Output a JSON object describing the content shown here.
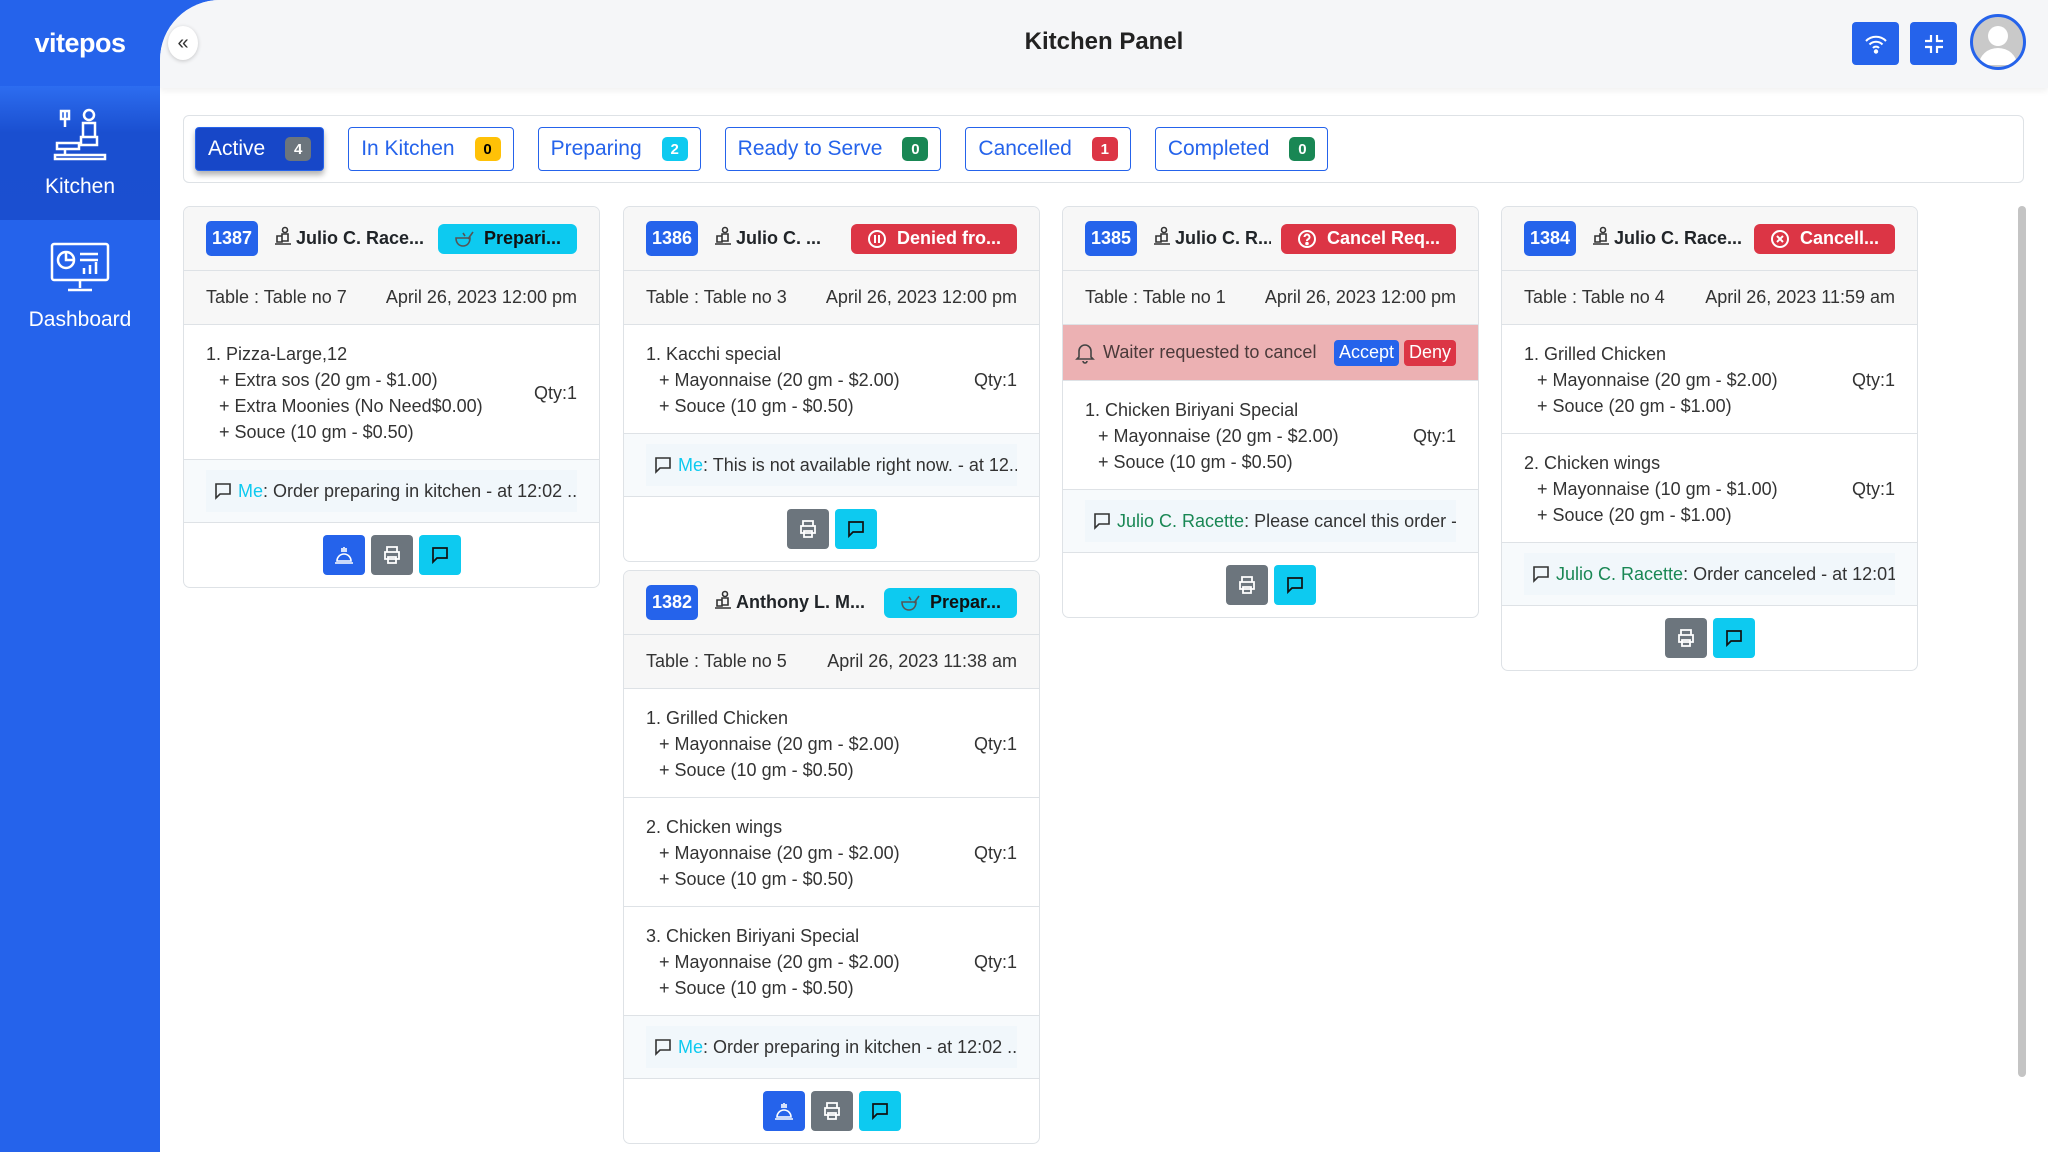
{
  "app": {
    "logo": "vitepos",
    "title": "Kitchen Panel"
  },
  "sidebar": {
    "items": [
      {
        "label": "Kitchen",
        "icon": "chef-icon",
        "active": true
      },
      {
        "label": "Dashboard",
        "icon": "dashboard-monitor-icon",
        "active": false
      }
    ]
  },
  "header": {
    "collapse_icon": "double-chevron-left-icon",
    "buttons": [
      {
        "icon": "wifi-icon"
      },
      {
        "icon": "fullscreen-exit-icon"
      }
    ],
    "avatar": "user-avatar-icon"
  },
  "tabs": [
    {
      "label": "Active",
      "count": "4",
      "badge_color": "#6c757d",
      "badge_text": "#ffffff",
      "active": true
    },
    {
      "label": "In Kitchen",
      "count": "0",
      "badge_color": "#ffc107",
      "badge_text": "#000000"
    },
    {
      "label": "Preparing",
      "count": "2",
      "badge_color": "#0dcaf0",
      "badge_text": "#ffffff"
    },
    {
      "label": "Ready to Serve",
      "count": "0",
      "badge_color": "#198754",
      "badge_text": "#ffffff"
    },
    {
      "label": "Cancelled",
      "count": "1",
      "badge_color": "#dc3545",
      "badge_text": "#ffffff"
    },
    {
      "label": "Completed",
      "count": "0",
      "badge_color": "#198754",
      "badge_text": "#ffffff"
    }
  ],
  "colors": {
    "primary": "#2563eb",
    "info": "#0dcaf0",
    "danger": "#dc3545",
    "secondary": "#6c757d",
    "waiter_name": "#198754",
    "me_name": "#0dcaf0"
  },
  "orders": [
    {
      "id": "1387",
      "customer": "Julio C. Race...",
      "status": "Prepari...",
      "status_type": "preparing",
      "table": "Table : Table no 7",
      "date": "April 26, 2023 12:00 pm",
      "items": [
        {
          "name": "1. Pizza-Large,12",
          "mods": [
            "+ Extra sos (20 gm - $1.00)",
            "+ Extra Moonies (No Need$0.00)",
            "+ Souce (10 gm - $0.50)"
          ],
          "qty": "Qty:1"
        }
      ],
      "comment": {
        "author": "Me",
        "text": " : Order preparing in kitchen - at 12:02 ...",
        "author_type": "me"
      },
      "buttons": [
        "serve",
        "print",
        "chat"
      ]
    },
    {
      "id": "1386",
      "customer": "Julio C. ...",
      "status": "Denied fro...",
      "status_type": "denied",
      "table": "Table : Table no 3",
      "date": "April 26, 2023 12:00 pm",
      "items": [
        {
          "name": "1. Kacchi special",
          "mods": [
            "+ Mayonnaise (20 gm - $2.00)",
            "+ Souce (10 gm - $0.50)"
          ],
          "qty": "Qty:1"
        }
      ],
      "comment": {
        "author": "Me",
        "text": " : This is not available right now. - at 12...",
        "author_type": "me"
      },
      "buttons": [
        "print",
        "chat"
      ]
    },
    {
      "id": "1385",
      "customer": "Julio C. R...",
      "status": "Cancel Req...",
      "status_type": "cancel-request",
      "table": "Table : Table no 1",
      "date": "April 26, 2023 12:00 pm",
      "alert": {
        "text": "Waiter requested to cancel",
        "accept": "Accept",
        "deny": "Deny"
      },
      "items": [
        {
          "name": "1. Chicken Biriyani Special",
          "mods": [
            "+ Mayonnaise (20 gm - $2.00)",
            "+ Souce (10 gm - $0.50)"
          ],
          "qty": "Qty:1"
        }
      ],
      "comment": {
        "author": "Julio C. Racette",
        "text": " : Please cancel this order -...",
        "author_type": "waiter"
      },
      "buttons": [
        "print",
        "chat"
      ]
    },
    {
      "id": "1384",
      "customer": "Julio C. Race...",
      "status": "Cancell...",
      "status_type": "cancelled",
      "table": "Table : Table no 4",
      "date": "April 26, 2023 11:59 am",
      "items": [
        {
          "name": "1. Grilled Chicken",
          "mods": [
            "+ Mayonnaise (20 gm - $2.00)",
            "+ Souce (20 gm - $1.00)"
          ],
          "qty": "Qty:1"
        },
        {
          "name": "2. Chicken wings",
          "mods": [
            "+ Mayonnaise (10 gm - $1.00)",
            "+ Souce (20 gm - $1.00)"
          ],
          "qty": "Qty:1"
        }
      ],
      "comment": {
        "author": "Julio C. Racette",
        "text": " : Order canceled - at 12:01...",
        "author_type": "waiter"
      },
      "buttons": [
        "print",
        "chat"
      ]
    },
    {
      "id": "1382",
      "customer": "Anthony L. M...",
      "status": "Prepar...",
      "status_type": "preparing",
      "table": "Table : Table no 5",
      "date": "April 26, 2023 11:38 am",
      "items": [
        {
          "name": "1. Grilled Chicken",
          "mods": [
            "+ Mayonnaise (20 gm - $2.00)",
            "+ Souce (10 gm - $0.50)"
          ],
          "qty": "Qty:1"
        },
        {
          "name": "2. Chicken wings",
          "mods": [
            "+ Mayonnaise (20 gm - $2.00)",
            "+ Souce (10 gm - $0.50)"
          ],
          "qty": "Qty:1"
        },
        {
          "name": "3. Chicken Biriyani Special",
          "mods": [
            "+ Mayonnaise (20 gm - $2.00)",
            "+ Souce (10 gm - $0.50)"
          ],
          "qty": "Qty:1"
        }
      ],
      "comment": {
        "author": "Me",
        "text": " : Order preparing in kitchen - at 12:02 ...",
        "author_type": "me"
      },
      "buttons": [
        "serve",
        "print",
        "chat"
      ]
    }
  ]
}
